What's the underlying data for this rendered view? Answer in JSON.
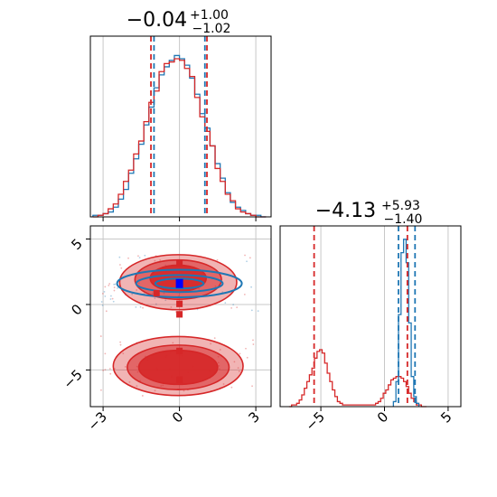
{
  "chart_data": {
    "type": "corner",
    "colors": {
      "blue": "#1f77b4",
      "red": "#d62728"
    },
    "marginal_x": {
      "title": {
        "median": "−0.04",
        "plus": "+1.00",
        "minus": "−1.02"
      },
      "xlim": [
        -3.5,
        3.6
      ],
      "bins": [
        -3.3,
        -3.1,
        -2.9,
        -2.7,
        -2.5,
        -2.3,
        -2.1,
        -1.9,
        -1.7,
        -1.5,
        -1.3,
        -1.1,
        -0.9,
        -0.7,
        -0.5,
        -0.3,
        -0.1,
        0.1,
        0.3,
        0.5,
        0.7,
        0.9,
        1.1,
        1.3,
        1.5,
        1.7,
        1.9,
        2.1,
        2.3,
        2.5,
        2.7,
        2.9,
        3.1,
        3.3,
        3.5
      ],
      "blue_counts": [
        0.01,
        0.01,
        0.02,
        0.03,
        0.06,
        0.11,
        0.17,
        0.27,
        0.36,
        0.45,
        0.57,
        0.68,
        0.8,
        0.88,
        0.93,
        0.97,
        1.0,
        0.98,
        0.94,
        0.86,
        0.76,
        0.64,
        0.55,
        0.44,
        0.33,
        0.24,
        0.15,
        0.09,
        0.06,
        0.04,
        0.02,
        0.01,
        0.01,
        0.0
      ],
      "red_counts": [
        0.0,
        0.01,
        0.02,
        0.05,
        0.08,
        0.14,
        0.22,
        0.29,
        0.39,
        0.47,
        0.59,
        0.71,
        0.78,
        0.9,
        0.95,
        0.96,
        0.98,
        0.97,
        0.92,
        0.87,
        0.74,
        0.62,
        0.53,
        0.44,
        0.3,
        0.22,
        0.14,
        0.1,
        0.05,
        0.03,
        0.02,
        0.01,
        0.0,
        0.0
      ],
      "blue_quantiles": [
        -1.0,
        1.0
      ],
      "red_quantiles": [
        -1.12,
        1.08
      ]
    },
    "marginal_y": {
      "title": {
        "median": "−4.13",
        "plus": "+5.93",
        "minus": "−1.40"
      },
      "xlim": [
        -8.2,
        6.0
      ],
      "blue_bins": [
        0.8,
        1.0,
        1.2,
        1.4,
        1.6,
        1.8,
        2.0,
        2.2,
        2.4,
        2.6
      ],
      "blue_counts": [
        0.03,
        0.15,
        0.55,
        0.92,
        1.0,
        0.86,
        0.5,
        0.18,
        0.06,
        0.02
      ],
      "red_bins": [
        -7.4,
        -7.2,
        -7.0,
        -6.8,
        -6.6,
        -6.4,
        -6.2,
        -6.0,
        -5.8,
        -5.6,
        -5.4,
        -5.2,
        -5.0,
        -4.8,
        -4.6,
        -4.4,
        -4.2,
        -4.0,
        -3.8,
        -3.6,
        -3.4,
        -3.2,
        -3.0,
        -2.8,
        -2.6,
        -2.4,
        -2.2,
        -2.0,
        -1.8,
        -1.6,
        -1.4,
        -1.2,
        -1.0,
        -0.8,
        -0.6,
        -0.4,
        -0.2,
        0.0,
        0.2,
        0.4,
        0.6,
        0.8,
        1.0,
        1.2,
        1.4,
        1.6,
        1.8,
        2.0,
        2.2,
        2.4,
        2.6,
        2.8,
        3.0,
        3.2
      ],
      "red_counts": [
        0.0,
        0.01,
        0.01,
        0.02,
        0.04,
        0.07,
        0.11,
        0.15,
        0.19,
        0.23,
        0.29,
        0.33,
        0.34,
        0.32,
        0.26,
        0.2,
        0.15,
        0.1,
        0.06,
        0.03,
        0.02,
        0.01,
        0.01,
        0.01,
        0.01,
        0.01,
        0.01,
        0.01,
        0.01,
        0.01,
        0.01,
        0.01,
        0.01,
        0.01,
        0.02,
        0.03,
        0.05,
        0.08,
        0.1,
        0.13,
        0.16,
        0.17,
        0.18,
        0.18,
        0.17,
        0.15,
        0.12,
        0.08,
        0.05,
        0.03,
        0.01,
        0.01,
        0.0,
        0.0
      ],
      "blue_quantiles": [
        1.1,
        2.4
      ],
      "red_quantiles": [
        -5.53,
        1.8
      ]
    },
    "joint": {
      "xlim": [
        -3.5,
        3.6
      ],
      "ylim": [
        -7.8,
        6.0
      ],
      "blue_contours": [
        {
          "cx": 0.0,
          "cy": 1.6,
          "rx": 2.45,
          "ry": 1.05
        },
        {
          "cx": 0.0,
          "cy": 1.6,
          "rx": 1.7,
          "ry": 0.65
        },
        {
          "cx": 0.0,
          "cy": 1.6,
          "rx": 0.95,
          "ry": 0.38
        }
      ],
      "red_contours": [
        {
          "cx": -0.05,
          "cy": 1.7,
          "rx": 2.3,
          "ry": 2.1
        },
        {
          "cx": -0.05,
          "cy": 1.9,
          "rx": 1.7,
          "ry": 1.5
        },
        {
          "cx": -0.05,
          "cy": 2.0,
          "rx": 1.1,
          "ry": 1.0
        },
        {
          "cx": -0.05,
          "cy": -4.7,
          "rx": 2.55,
          "ry": 2.25
        },
        {
          "cx": -0.05,
          "cy": -4.8,
          "rx": 2.0,
          "ry": 1.7
        },
        {
          "cx": -0.05,
          "cy": -4.8,
          "rx": 1.55,
          "ry": 1.3
        }
      ],
      "blue_peak": {
        "x": 0.0,
        "y": 1.6
      }
    },
    "x_ticks": [
      -3,
      0,
      3
    ],
    "y_ticks": [
      5,
      0,
      -5
    ],
    "ymarg_ticks": [
      -5,
      0,
      5
    ],
    "grid": true
  }
}
